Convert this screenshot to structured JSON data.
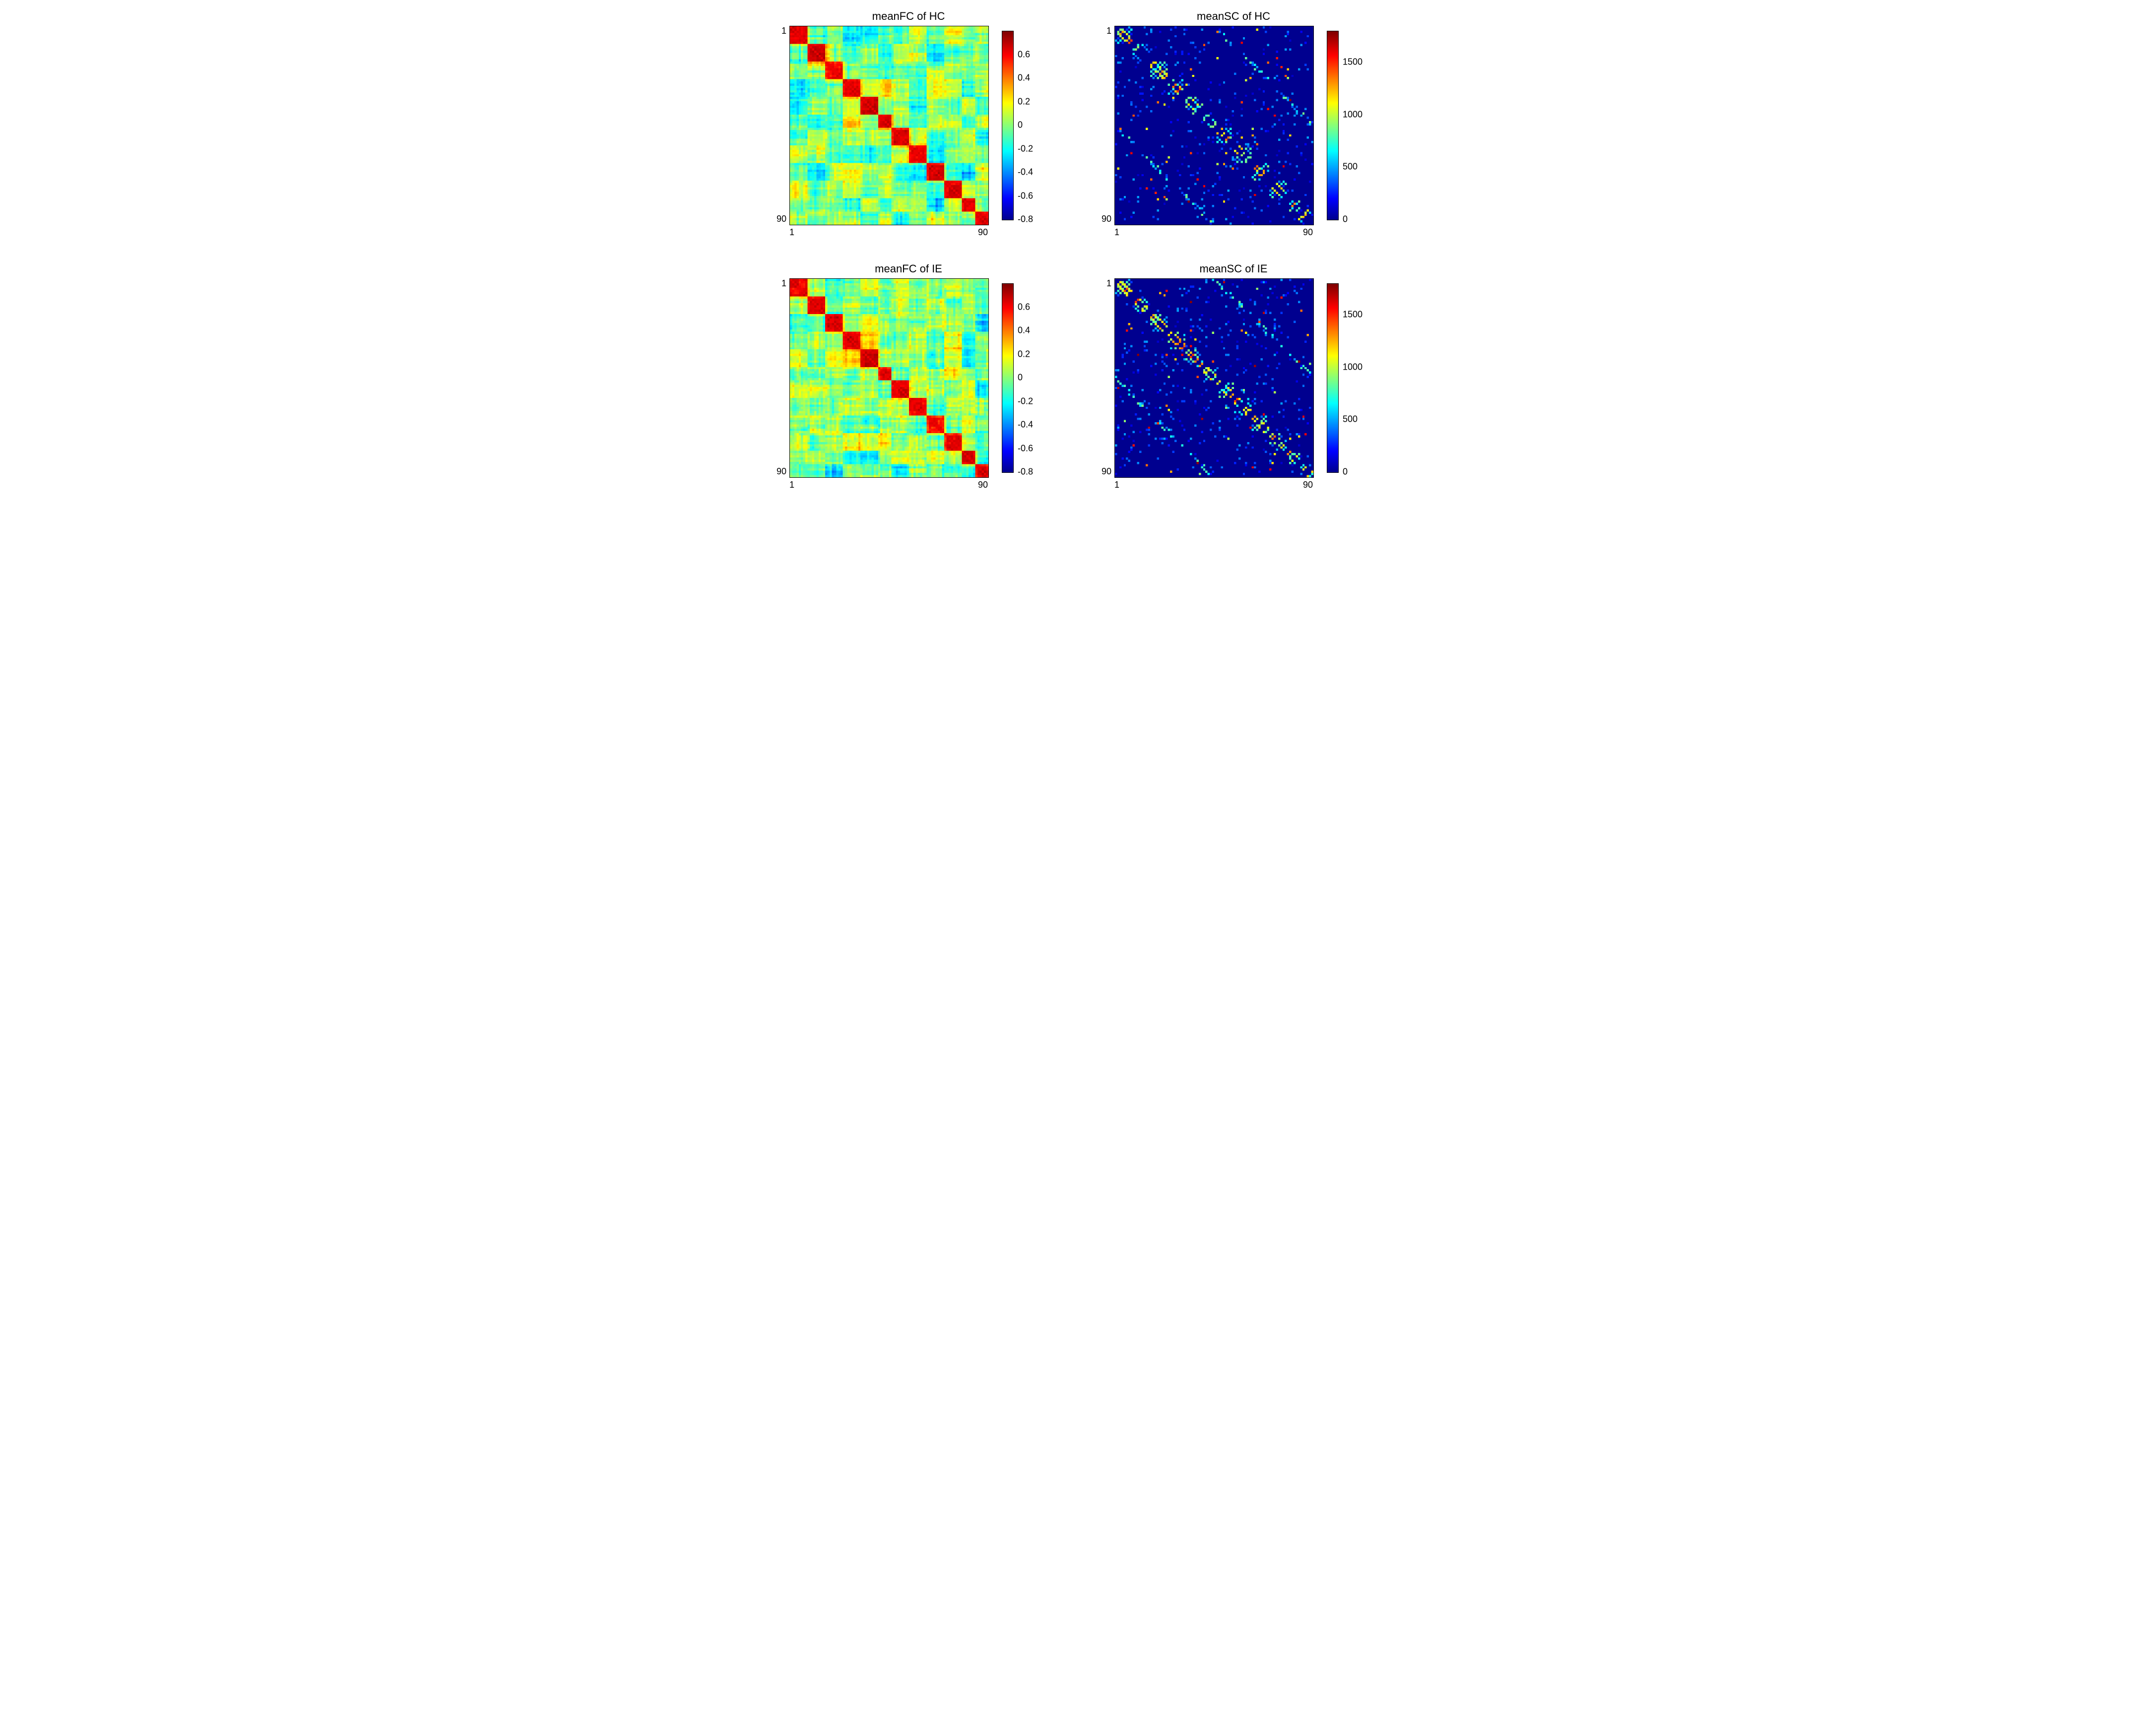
{
  "figure": {
    "background_color": "#ffffff",
    "font_family": "Arial",
    "title_fontsize": 22,
    "tick_fontsize": 18,
    "colormap_jet": [
      "#00008f",
      "#00009f",
      "#0000af",
      "#0000bf",
      "#0000cf",
      "#0000df",
      "#0000ef",
      "#0000ff",
      "#0010ff",
      "#0020ff",
      "#0030ff",
      "#0040ff",
      "#0050ff",
      "#0060ff",
      "#0070ff",
      "#0080ff",
      "#008fff",
      "#009fff",
      "#00afff",
      "#00bfff",
      "#00cfff",
      "#00dfff",
      "#00efff",
      "#00ffff",
      "#10ffef",
      "#20ffdf",
      "#30ffcf",
      "#40ffbf",
      "#50ffaf",
      "#60ff9f",
      "#70ff8f",
      "#80ff80",
      "#8fff70",
      "#9fff60",
      "#afff50",
      "#bfff40",
      "#cfff30",
      "#dfff20",
      "#efff10",
      "#ffff00",
      "#ffef00",
      "#ffdf00",
      "#ffcf00",
      "#ffbf00",
      "#ffaf00",
      "#ff9f00",
      "#ff8f00",
      "#ff8000",
      "#ff7000",
      "#ff6000",
      "#ff5000",
      "#ff4000",
      "#ff3000",
      "#ff2000",
      "#ff1000",
      "#ff0000",
      "#ef0000",
      "#df0000",
      "#cf0000",
      "#bf0000",
      "#af0000",
      "#9f0000",
      "#8f0000",
      "#800000"
    ],
    "panels": [
      {
        "id": "fc-hc",
        "title": "meanFC of HC",
        "type": "heatmap",
        "n": 90,
        "kind": "FC",
        "seed": 11,
        "x_ticks": [
          "1",
          "90"
        ],
        "y_ticks": [
          "1",
          "90"
        ],
        "clim": [
          -0.8,
          0.8
        ],
        "colorbar_ticks": [
          0.6,
          0.4,
          0.2,
          0,
          -0.2,
          -0.4,
          -0.6,
          -0.8
        ],
        "border_color": "#000000"
      },
      {
        "id": "sc-hc",
        "title": "meanSC of HC",
        "type": "heatmap",
        "n": 90,
        "kind": "SC",
        "seed": 31,
        "x_ticks": [
          "1",
          "90"
        ],
        "y_ticks": [
          "1",
          "90"
        ],
        "clim": [
          0,
          1800
        ],
        "colorbar_ticks": [
          1500,
          1000,
          500,
          0
        ],
        "border_color": "#000000"
      },
      {
        "id": "fc-ie",
        "title": "meanFC of IE",
        "type": "heatmap",
        "n": 90,
        "kind": "FC",
        "seed": 13,
        "x_ticks": [
          "1",
          "90"
        ],
        "y_ticks": [
          "1",
          "90"
        ],
        "clim": [
          -0.8,
          0.8
        ],
        "colorbar_ticks": [
          0.6,
          0.4,
          0.2,
          0,
          -0.2,
          -0.4,
          -0.6,
          -0.8
        ],
        "border_color": "#000000"
      },
      {
        "id": "sc-ie",
        "title": "meanSC of IE",
        "type": "heatmap",
        "n": 90,
        "kind": "SC",
        "seed": 33,
        "x_ticks": [
          "1",
          "90"
        ],
        "y_ticks": [
          "1",
          "90"
        ],
        "clim": [
          0,
          1800
        ],
        "colorbar_ticks": [
          1500,
          1000,
          500,
          0
        ],
        "border_color": "#000000"
      }
    ]
  }
}
